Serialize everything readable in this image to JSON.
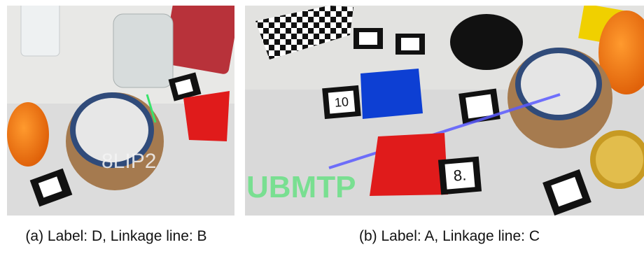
{
  "panels": [
    {
      "caption": "(a) Label: D, Linkage line: B",
      "photo_texts": []
    },
    {
      "caption": "(b) Label: A, Linkage line: C",
      "photo_texts": [
        "UBMTP",
        "10",
        "8."
      ]
    }
  ]
}
